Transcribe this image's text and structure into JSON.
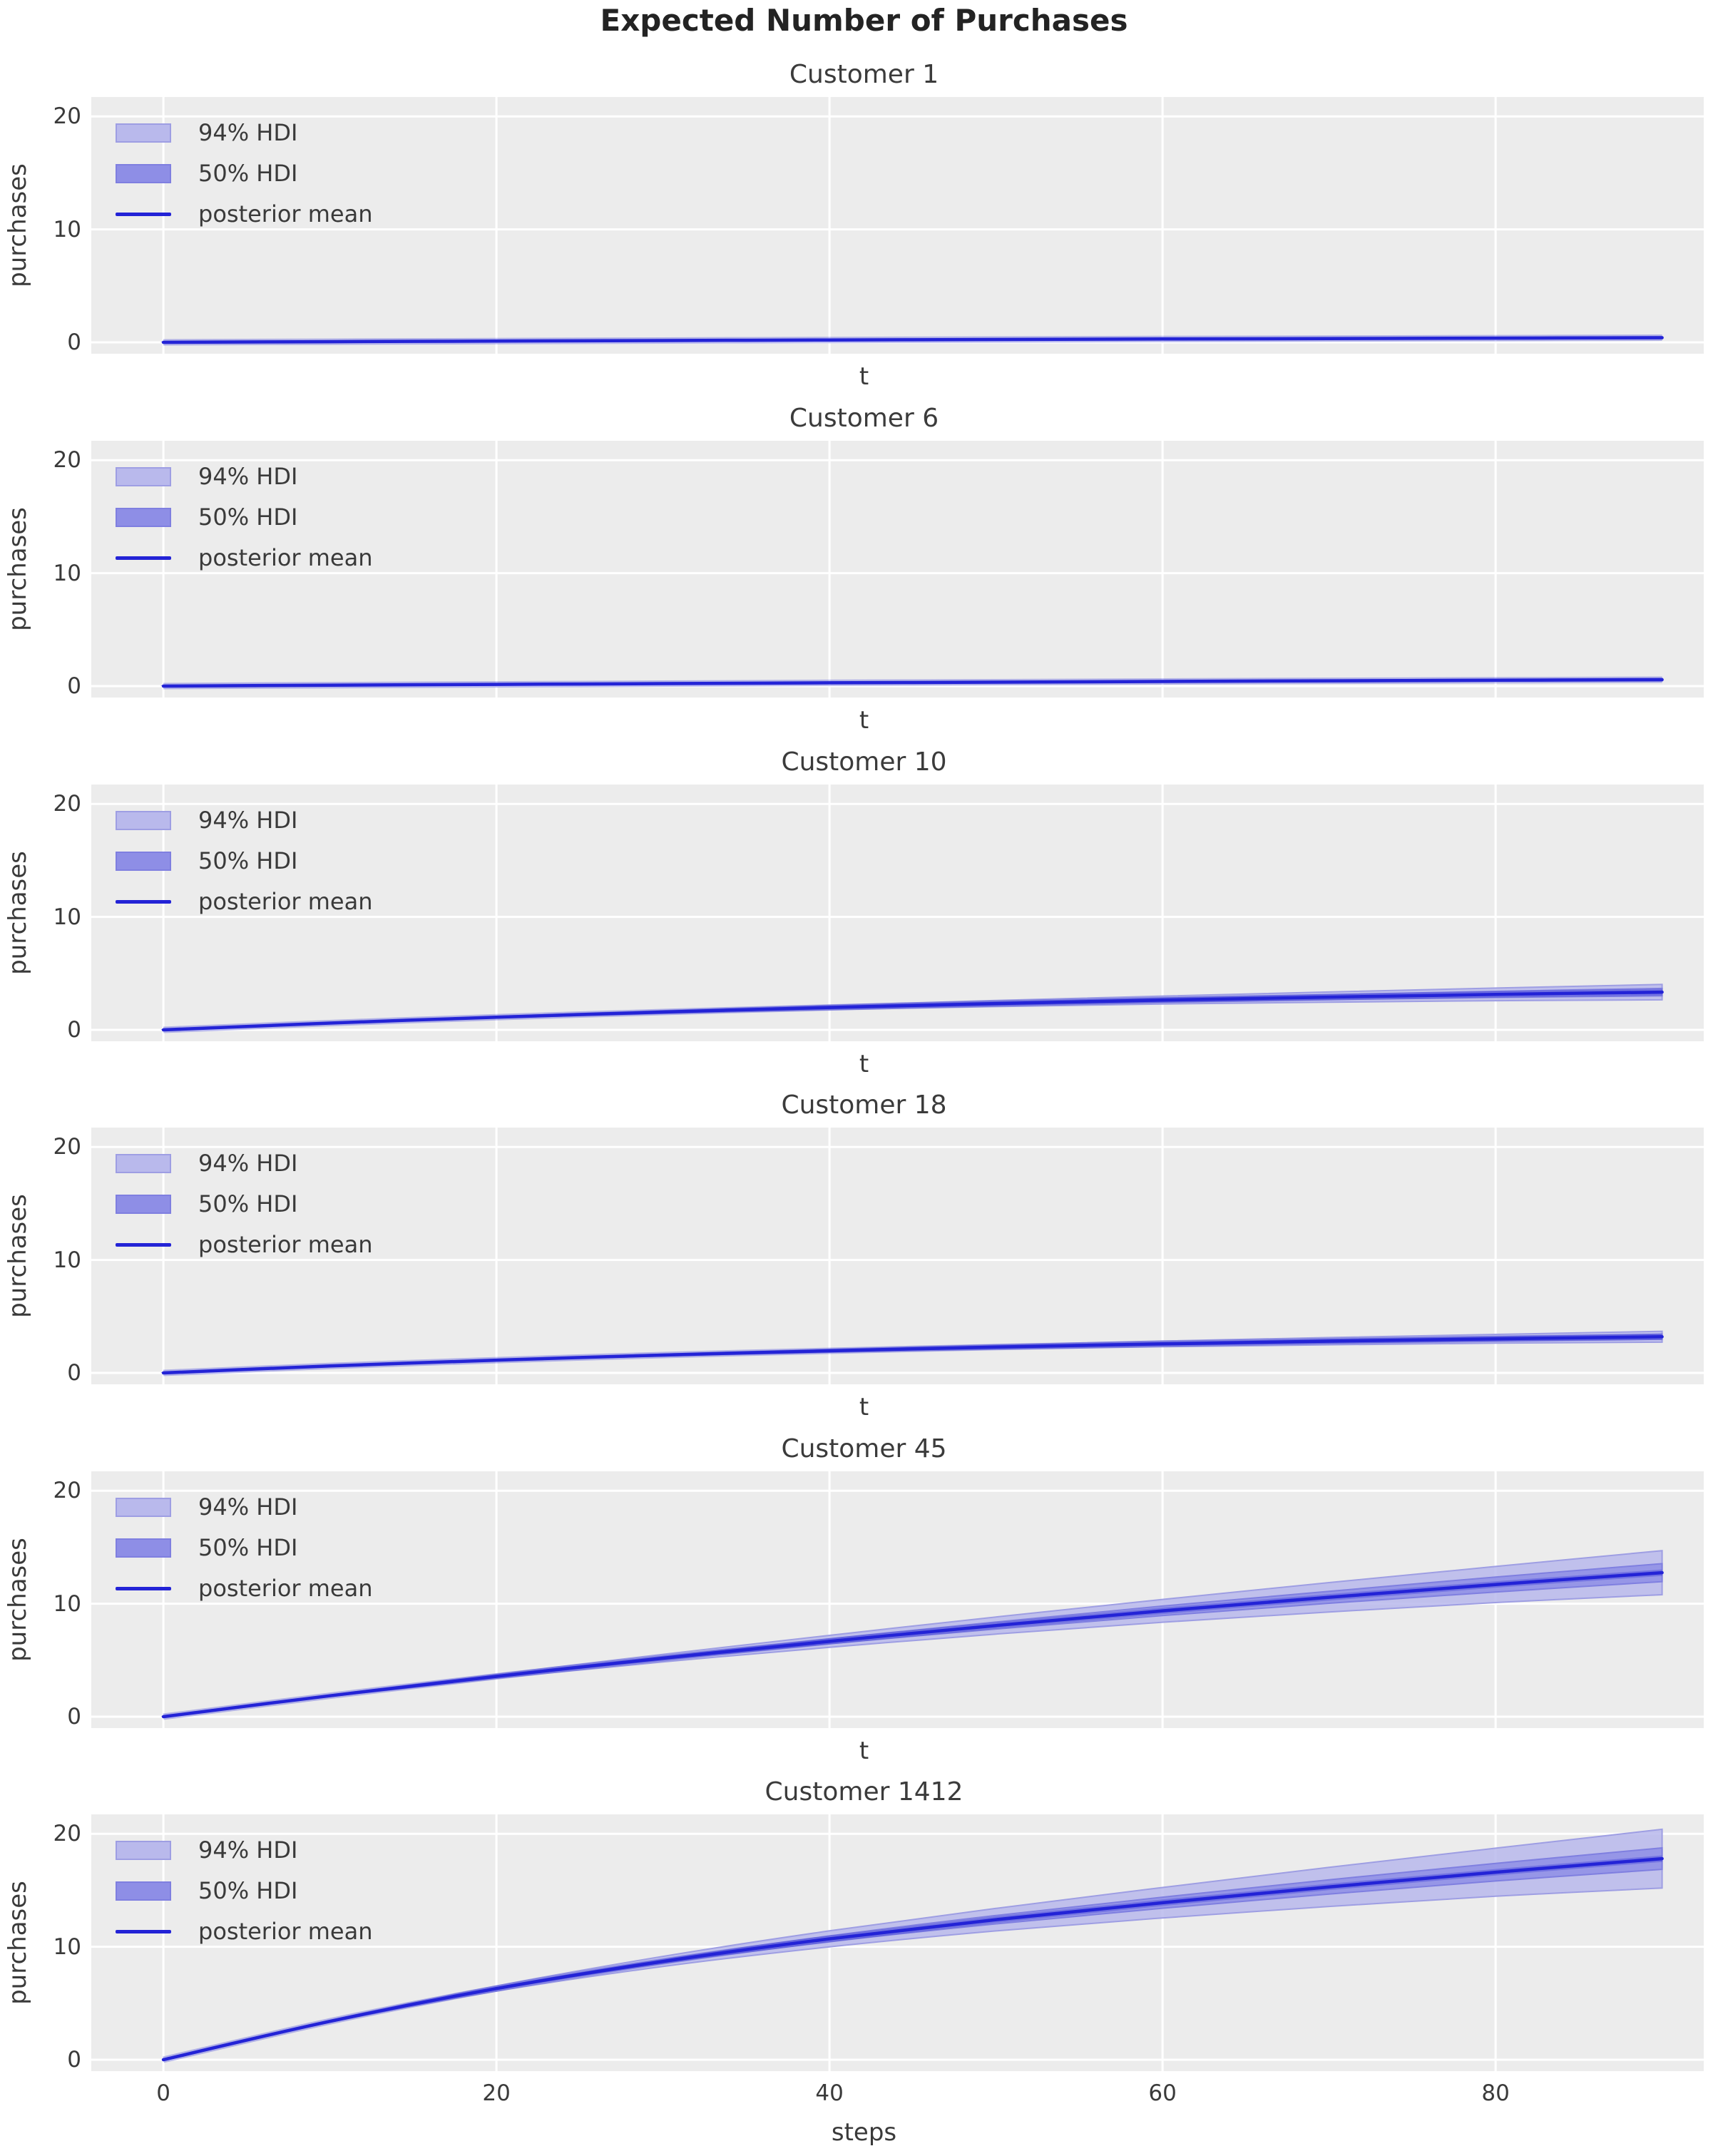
{
  "figure": {
    "title": "Expected Number of Purchases",
    "background": "#ffffff",
    "plot_bg": "#ececec",
    "grid_color": "#ffffff",
    "text_color": "#3a3a3a",
    "colors": {
      "hdi94_fill": "#b9b9ec",
      "hdi94_edge": "#9e9ee3",
      "hdi50_fill": "#8e8ee6",
      "hdi50_edge": "#7f7fe0",
      "mean_line": "#2323d6"
    }
  },
  "legend": {
    "entries": [
      {
        "label": "94% HDI",
        "type": "patch",
        "fill": "#b9b9ec",
        "edge": "#9e9ee3"
      },
      {
        "label": "50% HDI",
        "type": "patch",
        "fill": "#8e8ee6",
        "edge": "#7f7fe0"
      },
      {
        "label": "posterior mean",
        "type": "line",
        "color": "#2323d6"
      }
    ]
  },
  "axes": {
    "xlim": [
      -4.33,
      92.5
    ],
    "ylim": [
      -1.01,
      21.72
    ],
    "xticks": [
      0,
      20,
      40,
      60,
      80
    ],
    "yticks": [
      0,
      10,
      20
    ],
    "ylabel": "purchases",
    "xlabel_shared": "t",
    "xlabel_bottom": "steps",
    "grid": true,
    "legend_position": "upper left"
  },
  "chart_data": [
    {
      "type": "line",
      "title": "Customer 1",
      "x": [
        0,
        10,
        20,
        30,
        40,
        50,
        60,
        70,
        80,
        90
      ],
      "series": [
        {
          "name": "posterior mean",
          "values": [
            0,
            0.06,
            0.11,
            0.16,
            0.21,
            0.25,
            0.3,
            0.33,
            0.37,
            0.41
          ]
        }
      ],
      "hdi94_lower": [
        0,
        0.06,
        0.1,
        0.15,
        0.19,
        0.22,
        0.25,
        0.28,
        0.31,
        0.33
      ],
      "hdi94_upper": [
        0,
        0.06,
        0.12,
        0.18,
        0.23,
        0.28,
        0.34,
        0.39,
        0.44,
        0.49
      ],
      "hdi50_lower": [
        0,
        0.06,
        0.11,
        0.16,
        0.2,
        0.24,
        0.28,
        0.31,
        0.34,
        0.37
      ],
      "hdi50_upper": [
        0,
        0.06,
        0.11,
        0.17,
        0.22,
        0.27,
        0.31,
        0.36,
        0.4,
        0.44
      ]
    },
    {
      "type": "line",
      "title": "Customer 6",
      "x": [
        0,
        10,
        20,
        30,
        40,
        50,
        60,
        70,
        80,
        90
      ],
      "series": [
        {
          "name": "posterior mean",
          "values": [
            0,
            0.08,
            0.15,
            0.22,
            0.29,
            0.35,
            0.41,
            0.47,
            0.52,
            0.57
          ]
        }
      ],
      "hdi94_lower": [
        0,
        0.08,
        0.14,
        0.21,
        0.26,
        0.31,
        0.36,
        0.4,
        0.44,
        0.47
      ],
      "hdi94_upper": [
        0,
        0.08,
        0.16,
        0.24,
        0.32,
        0.39,
        0.46,
        0.53,
        0.6,
        0.67
      ],
      "hdi50_lower": [
        0,
        0.08,
        0.15,
        0.22,
        0.28,
        0.34,
        0.39,
        0.44,
        0.48,
        0.52
      ],
      "hdi50_upper": [
        0,
        0.08,
        0.16,
        0.23,
        0.3,
        0.37,
        0.44,
        0.5,
        0.56,
        0.61
      ]
    },
    {
      "type": "line",
      "title": "Customer 10",
      "x": [
        0,
        10,
        20,
        30,
        40,
        50,
        60,
        70,
        80,
        90
      ],
      "series": [
        {
          "name": "posterior mean",
          "values": [
            0,
            0.6,
            1.12,
            1.58,
            1.98,
            2.33,
            2.64,
            2.9,
            3.14,
            3.34
          ]
        }
      ],
      "hdi94_lower": [
        0,
        0.58,
        1.06,
        1.46,
        1.79,
        2.06,
        2.29,
        2.45,
        2.58,
        2.66
      ],
      "hdi94_upper": [
        0,
        0.62,
        1.18,
        1.7,
        2.17,
        2.6,
        2.99,
        3.35,
        3.7,
        4.02
      ],
      "hdi50_lower": [
        0,
        0.59,
        1.09,
        1.52,
        1.89,
        2.2,
        2.47,
        2.68,
        2.87,
        3.01
      ],
      "hdi50_upper": [
        0,
        0.61,
        1.15,
        1.64,
        2.07,
        2.46,
        2.81,
        3.12,
        3.41,
        3.67
      ]
    },
    {
      "type": "line",
      "title": "Customer 18",
      "x": [
        0,
        10,
        20,
        30,
        40,
        50,
        60,
        70,
        80,
        90
      ],
      "series": [
        {
          "name": "posterior mean",
          "values": [
            0,
            0.61,
            1.13,
            1.58,
            1.96,
            2.29,
            2.57,
            2.81,
            3.02,
            3.2
          ]
        }
      ],
      "hdi94_lower": [
        0,
        0.6,
        1.09,
        1.5,
        1.83,
        2.1,
        2.32,
        2.49,
        2.63,
        2.72
      ],
      "hdi94_upper": [
        0,
        0.62,
        1.17,
        1.66,
        2.09,
        2.48,
        2.82,
        3.13,
        3.41,
        3.68
      ],
      "hdi50_lower": [
        0,
        0.6,
        1.11,
        1.54,
        1.9,
        2.2,
        2.46,
        2.66,
        2.84,
        2.98
      ],
      "hdi50_upper": [
        0,
        0.62,
        1.15,
        1.62,
        2.02,
        2.38,
        2.68,
        2.96,
        3.2,
        3.42
      ]
    },
    {
      "type": "line",
      "title": "Customer 45",
      "x": [
        0,
        10,
        20,
        30,
        40,
        50,
        60,
        70,
        80,
        90
      ],
      "series": [
        {
          "name": "posterior mean",
          "values": [
            0,
            1.85,
            3.57,
            5.18,
            6.67,
            8.07,
            9.37,
            10.57,
            11.7,
            12.75
          ]
        }
      ],
      "hdi94_lower": [
        0,
        1.79,
        3.39,
        4.84,
        6.14,
        7.31,
        8.36,
        9.27,
        10.1,
        10.8
      ],
      "hdi94_upper": [
        0,
        1.91,
        3.75,
        5.52,
        7.2,
        8.83,
        10.38,
        11.87,
        13.3,
        14.7
      ],
      "hdi50_lower": [
        0,
        1.83,
        3.5,
        5.04,
        6.45,
        7.76,
        8.95,
        10.04,
        11.04,
        11.95
      ],
      "hdi50_upper": [
        0,
        1.87,
        3.64,
        5.32,
        6.89,
        8.38,
        9.79,
        11.1,
        12.36,
        13.55
      ]
    },
    {
      "type": "line",
      "title": "Customer 1412",
      "x": [
        0,
        10,
        20,
        30,
        40,
        50,
        60,
        70,
        80,
        90
      ],
      "series": [
        {
          "name": "posterior mean",
          "values": [
            0,
            3.4,
            6.3,
            8.7,
            10.7,
            12.4,
            13.9,
            15.3,
            16.6,
            17.8
          ]
        }
      ],
      "hdi94_lower": [
        0,
        3.32,
        6.07,
        8.25,
        9.99,
        11.4,
        12.55,
        13.57,
        14.47,
        15.2
      ],
      "hdi94_upper": [
        0,
        3.48,
        6.53,
        9.15,
        11.41,
        13.4,
        15.25,
        17.03,
        18.73,
        20.4
      ],
      "hdi50_lower": [
        0,
        3.37,
        6.21,
        8.54,
        10.44,
        12.03,
        13.41,
        14.67,
        15.82,
        16.85
      ],
      "hdi50_upper": [
        0,
        3.43,
        6.39,
        8.86,
        10.96,
        12.77,
        14.39,
        15.93,
        17.38,
        18.75
      ]
    }
  ]
}
